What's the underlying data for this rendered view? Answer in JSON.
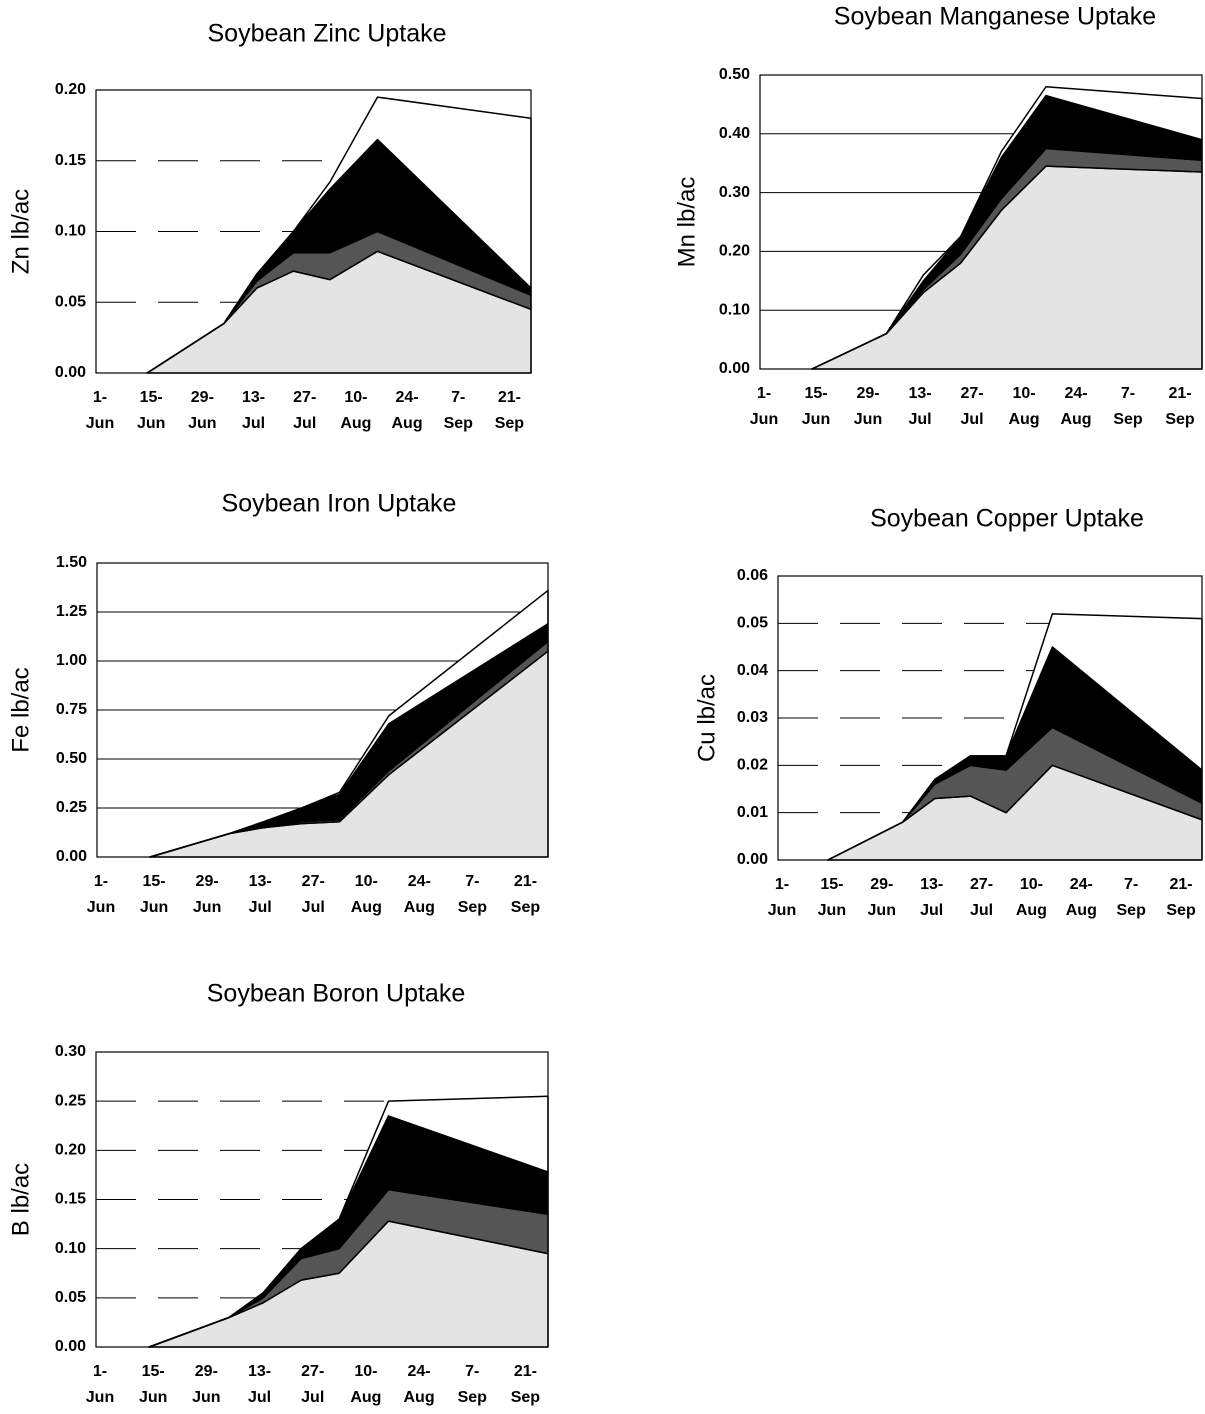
{
  "chart_data": [
    {
      "type": "area",
      "stacked": true,
      "title": "Soybean Zinc Uptake",
      "ylabel": "Zn lb/ac",
      "x": [
        14,
        35,
        44,
        54,
        64,
        77,
        119
      ],
      "xlim": [
        0,
        119
      ],
      "xticks": [
        {
          "value": 0,
          "label": "1- Jun"
        },
        {
          "value": 14,
          "label": "15- Jun"
        },
        {
          "value": 28,
          "label": "29- Jun"
        },
        {
          "value": 42,
          "label": "13- Jul"
        },
        {
          "value": 56,
          "label": "27- Jul"
        },
        {
          "value": 70,
          "label": "10- Aug"
        },
        {
          "value": 84,
          "label": "24- Aug"
        },
        {
          "value": 98,
          "label": "7- Sep"
        },
        {
          "value": 112,
          "label": "21- Sep"
        }
      ],
      "ylim": [
        0,
        0.2
      ],
      "yticks": [
        {
          "value": 0,
          "label": "0.00"
        },
        {
          "value": 0.05,
          "label": "0.05"
        },
        {
          "value": 0.1,
          "label": "0.10"
        },
        {
          "value": 0.15,
          "label": "0.15"
        },
        {
          "value": 0.2,
          "label": "0.20"
        }
      ],
      "grid": "dashed",
      "series": [
        {
          "color": "#e4e4e4",
          "values": [
            0,
            0.035,
            0.06,
            0.072,
            0.066,
            0.086,
            0.045
          ]
        },
        {
          "color": "#555555",
          "values": [
            0,
            0,
            0.005,
            0.013,
            0.019,
            0.014,
            0.01
          ]
        },
        {
          "color": "#000000",
          "values": [
            0,
            0,
            0.005,
            0.015,
            0.045,
            0.065,
            0.005
          ]
        },
        {
          "color": "#ffffff",
          "values": [
            0,
            0,
            0,
            0,
            0.005,
            0.03,
            0.12
          ]
        }
      ]
    },
    {
      "type": "area",
      "stacked": true,
      "title": "Soybean Manganese Uptake",
      "ylabel": "Mn lb/ac",
      "x": [
        14,
        34,
        44,
        54,
        65,
        77,
        119
      ],
      "xlim": [
        0,
        119
      ],
      "xticks": [
        {
          "value": 0,
          "label": "1- Jun"
        },
        {
          "value": 14,
          "label": "15- Jun"
        },
        {
          "value": 28,
          "label": "29- Jun"
        },
        {
          "value": 42,
          "label": "13- Jul"
        },
        {
          "value": 56,
          "label": "27- Jul"
        },
        {
          "value": 70,
          "label": "10- Aug"
        },
        {
          "value": 84,
          "label": "24- Aug"
        },
        {
          "value": 98,
          "label": "7- Sep"
        },
        {
          "value": 112,
          "label": "21- Sep"
        }
      ],
      "ylim": [
        0,
        0.5
      ],
      "yticks": [
        {
          "value": 0,
          "label": "0.00"
        },
        {
          "value": 0.1,
          "label": "0.10"
        },
        {
          "value": 0.2,
          "label": "0.20"
        },
        {
          "value": 0.3,
          "label": "0.30"
        },
        {
          "value": 0.4,
          "label": "0.40"
        },
        {
          "value": 0.5,
          "label": "0.50"
        }
      ],
      "grid": "solid",
      "series": [
        {
          "color": "#e4e4e4",
          "values": [
            0,
            0.06,
            0.13,
            0.18,
            0.27,
            0.345,
            0.335
          ]
        },
        {
          "color": "#555555",
          "values": [
            0,
            0,
            0.005,
            0.015,
            0.02,
            0.03,
            0.02
          ]
        },
        {
          "color": "#000000",
          "values": [
            0,
            0,
            0.015,
            0.03,
            0.07,
            0.09,
            0.035
          ]
        },
        {
          "color": "#ffffff",
          "values": [
            0,
            0,
            0.01,
            0,
            0.01,
            0.015,
            0.07
          ]
        }
      ]
    },
    {
      "type": "area",
      "stacked": true,
      "title": "Soybean Iron Uptake",
      "ylabel": "Fe lb/ac",
      "x": [
        14,
        35,
        44,
        54,
        64,
        77,
        119
      ],
      "xlim": [
        0,
        119
      ],
      "xticks": [
        {
          "value": 0,
          "label": "1- Jun"
        },
        {
          "value": 14,
          "label": "15- Jun"
        },
        {
          "value": 28,
          "label": "29- Jun"
        },
        {
          "value": 42,
          "label": "13- Jul"
        },
        {
          "value": 56,
          "label": "27- Jul"
        },
        {
          "value": 70,
          "label": "10- Aug"
        },
        {
          "value": 84,
          "label": "24- Aug"
        },
        {
          "value": 98,
          "label": "7- Sep"
        },
        {
          "value": 112,
          "label": "21- Sep"
        }
      ],
      "ylim": [
        0,
        1.5
      ],
      "yticks": [
        {
          "value": 0,
          "label": "0.00"
        },
        {
          "value": 0.25,
          "label": "0.25"
        },
        {
          "value": 0.5,
          "label": "0.50"
        },
        {
          "value": 0.75,
          "label": "0.75"
        },
        {
          "value": 1,
          "label": "1.00"
        },
        {
          "value": 1.25,
          "label": "1.25"
        },
        {
          "value": 1.5,
          "label": "1.50"
        }
      ],
      "grid": "solid",
      "series": [
        {
          "color": "#e4e4e4",
          "values": [
            0,
            0.12,
            0.15,
            0.17,
            0.18,
            0.42,
            1.05
          ]
        },
        {
          "color": "#555555",
          "values": [
            0,
            0,
            0,
            0.01,
            0.01,
            0.02,
            0.05
          ]
        },
        {
          "color": "#000000",
          "values": [
            0,
            0,
            0.03,
            0.07,
            0.13,
            0.24,
            0.09
          ]
        },
        {
          "color": "#ffffff",
          "values": [
            0,
            0,
            0,
            0,
            0.01,
            0.04,
            0.17
          ]
        }
      ]
    },
    {
      "type": "area",
      "stacked": true,
      "title": "Soybean Copper Uptake",
      "ylabel": "Cu lb/ac",
      "x": [
        14,
        35,
        44,
        54,
        64,
        77,
        119
      ],
      "xlim": [
        0,
        119
      ],
      "xticks": [
        {
          "value": 0,
          "label": "1- Jun"
        },
        {
          "value": 14,
          "label": "15- Jun"
        },
        {
          "value": 28,
          "label": "29- Jun"
        },
        {
          "value": 42,
          "label": "13- Jul"
        },
        {
          "value": 56,
          "label": "27- Jul"
        },
        {
          "value": 70,
          "label": "10- Aug"
        },
        {
          "value": 84,
          "label": "24- Aug"
        },
        {
          "value": 98,
          "label": "7- Sep"
        },
        {
          "value": 112,
          "label": "21- Sep"
        }
      ],
      "ylim": [
        0,
        0.06
      ],
      "yticks": [
        {
          "value": 0,
          "label": "0.00"
        },
        {
          "value": 0.01,
          "label": "0.01"
        },
        {
          "value": 0.02,
          "label": "0.02"
        },
        {
          "value": 0.03,
          "label": "0.03"
        },
        {
          "value": 0.04,
          "label": "0.04"
        },
        {
          "value": 0.05,
          "label": "0.05"
        },
        {
          "value": 0.06,
          "label": "0.06"
        }
      ],
      "grid": "dashed",
      "series": [
        {
          "color": "#e4e4e4",
          "values": [
            0,
            0.008,
            0.013,
            0.0135,
            0.01,
            0.02,
            0.0085
          ]
        },
        {
          "color": "#555555",
          "values": [
            0,
            0,
            0.003,
            0.0065,
            0.009,
            0.008,
            0.0035
          ]
        },
        {
          "color": "#000000",
          "values": [
            0,
            0,
            0.001,
            0.002,
            0.003,
            0.017,
            0.007
          ]
        },
        {
          "color": "#ffffff",
          "values": [
            0,
            0,
            0,
            0,
            0,
            0.007,
            0.032
          ]
        }
      ]
    },
    {
      "type": "area",
      "stacked": true,
      "title": "Soybean Boron Uptake",
      "ylabel": "B lb/ac",
      "x": [
        14,
        35,
        44,
        54,
        64,
        77,
        119
      ],
      "xlim": [
        0,
        119
      ],
      "xticks": [
        {
          "value": 0,
          "label": "1- Jun"
        },
        {
          "value": 14,
          "label": "15- Jun"
        },
        {
          "value": 28,
          "label": "29- Jun"
        },
        {
          "value": 42,
          "label": "13- Jul"
        },
        {
          "value": 56,
          "label": "27- Jul"
        },
        {
          "value": 70,
          "label": "10- Aug"
        },
        {
          "value": 84,
          "label": "24- Aug"
        },
        {
          "value": 98,
          "label": "7- Sep"
        },
        {
          "value": 112,
          "label": "21- Sep"
        }
      ],
      "ylim": [
        0,
        0.3
      ],
      "yticks": [
        {
          "value": 0,
          "label": "0.00"
        },
        {
          "value": 0.05,
          "label": "0.05"
        },
        {
          "value": 0.1,
          "label": "0.10"
        },
        {
          "value": 0.15,
          "label": "0.15"
        },
        {
          "value": 0.2,
          "label": "0.20"
        },
        {
          "value": 0.25,
          "label": "0.25"
        },
        {
          "value": 0.3,
          "label": "0.30"
        }
      ],
      "grid": "dashed",
      "series": [
        {
          "color": "#e4e4e4",
          "values": [
            0,
            0.03,
            0.045,
            0.068,
            0.075,
            0.128,
            0.095
          ]
        },
        {
          "color": "#555555",
          "values": [
            0,
            0,
            0.005,
            0.022,
            0.025,
            0.032,
            0.04
          ]
        },
        {
          "color": "#000000",
          "values": [
            0,
            0,
            0.005,
            0.01,
            0.03,
            0.075,
            0.043
          ]
        },
        {
          "color": "#ffffff",
          "values": [
            0,
            0,
            0,
            0,
            0,
            0.015,
            0.077
          ]
        }
      ]
    }
  ]
}
